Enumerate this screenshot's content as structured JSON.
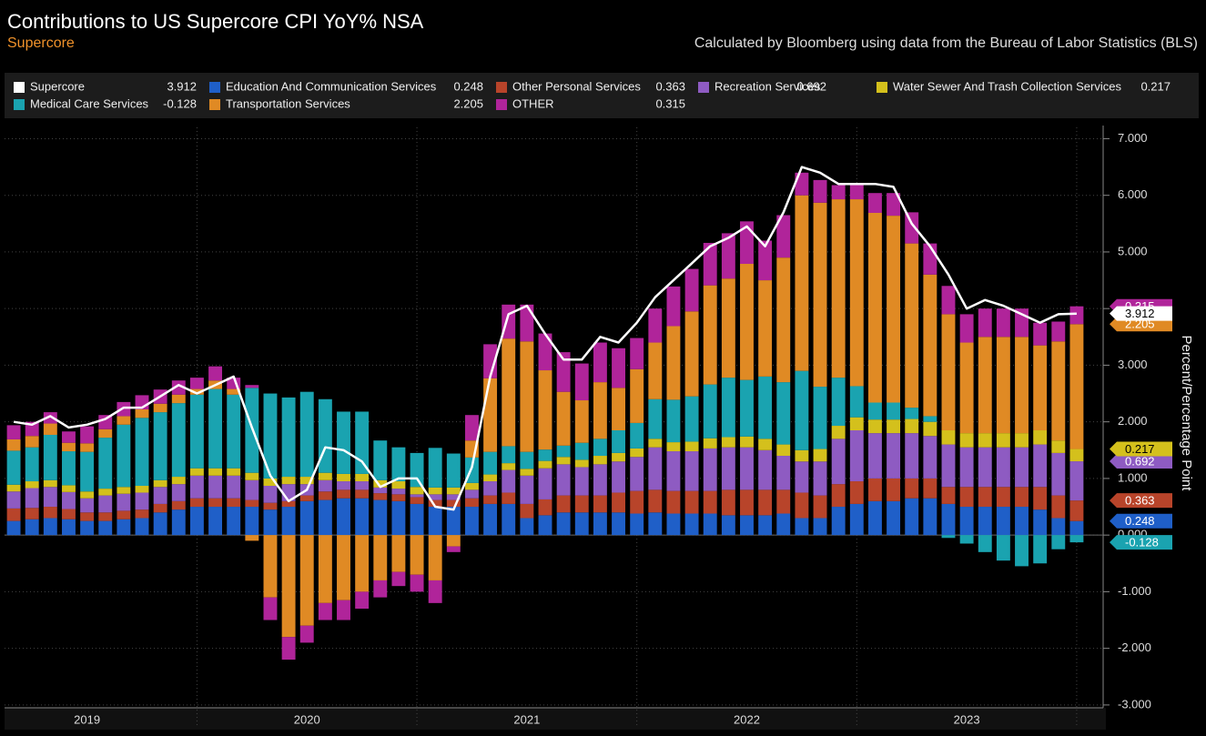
{
  "chart_data": {
    "type": "stacked-bar-line",
    "title": "Contributions to US Supercore CPI YoY% NSA",
    "subtitle": "Supercore",
    "note": "Calculated by Bloomberg using data from the Bureau of Labor Statistics (BLS)",
    "y_label": "Percent/Percentage Point",
    "categories": [
      null,
      null,
      null,
      null,
      "2019",
      null,
      null,
      null,
      null,
      null,
      null,
      null,
      null,
      null,
      null,
      null,
      "2020",
      null,
      null,
      null,
      null,
      null,
      null,
      null,
      null,
      null,
      null,
      null,
      "2021",
      null,
      null,
      null,
      null,
      null,
      null,
      null,
      null,
      null,
      null,
      null,
      "2022",
      null,
      null,
      null,
      null,
      null,
      null,
      null,
      null,
      null,
      null,
      null,
      "2023",
      null,
      null,
      null,
      null,
      null,
      null
    ],
    "ylim": [
      -3.05,
      7.2
    ],
    "yticks": [
      {
        "value": -3,
        "label": "-3.000"
      },
      {
        "value": -2,
        "label": "-2.000"
      },
      {
        "value": -1,
        "label": "-1.000"
      },
      {
        "value": 0,
        "label": "0.000"
      },
      {
        "value": 1,
        "label": "1.000"
      },
      {
        "value": 2,
        "label": "2.000"
      },
      {
        "value": 3,
        "label": "3.000"
      },
      {
        "value": 4,
        "label": "4.000"
      },
      {
        "value": 5,
        "label": "5.000"
      },
      {
        "value": 6,
        "label": "6.000"
      },
      {
        "value": 7,
        "label": "7.000"
      }
    ],
    "grid": true,
    "series": [
      {
        "name": "Supercore",
        "color": "#ffffff",
        "kind": "line",
        "values": [
          2.0,
          1.95,
          2.1,
          1.9,
          1.95,
          2.05,
          2.25,
          2.25,
          2.45,
          2.65,
          2.5,
          2.65,
          2.8,
          1.9,
          1.05,
          0.6,
          0.8,
          1.55,
          1.5,
          1.3,
          0.85,
          1.0,
          1.0,
          0.5,
          0.45,
          1.2,
          2.8,
          3.9,
          4.05,
          3.55,
          3.1,
          3.1,
          3.5,
          3.4,
          3.75,
          4.2,
          4.5,
          4.8,
          5.1,
          5.25,
          5.45,
          5.1,
          5.7,
          6.5,
          6.4,
          6.2,
          6.2,
          6.2,
          6.15,
          5.5,
          5.1,
          4.6,
          4.0,
          4.15,
          4.05,
          3.9,
          3.75,
          3.9,
          3.912
        ]
      },
      {
        "name": "Education And Communication Services",
        "color": "#1f5fc8",
        "kind": "bar",
        "values": [
          0.25,
          0.28,
          0.3,
          0.28,
          0.25,
          0.25,
          0.28,
          0.3,
          0.4,
          0.45,
          0.5,
          0.5,
          0.5,
          0.5,
          0.45,
          0.5,
          0.6,
          0.62,
          0.65,
          0.65,
          0.62,
          0.6,
          0.55,
          0.5,
          0.5,
          0.5,
          0.55,
          0.55,
          0.3,
          0.35,
          0.4,
          0.4,
          0.4,
          0.4,
          0.38,
          0.4,
          0.38,
          0.38,
          0.38,
          0.35,
          0.35,
          0.35,
          0.38,
          0.3,
          0.3,
          0.5,
          0.55,
          0.6,
          0.6,
          0.65,
          0.65,
          0.55,
          0.5,
          0.5,
          0.5,
          0.5,
          0.45,
          0.3,
          0.248
        ]
      },
      {
        "name": "Other Personal Services",
        "color": "#b8442a",
        "kind": "bar",
        "values": [
          0.22,
          0.2,
          0.2,
          0.18,
          0.15,
          0.15,
          0.15,
          0.15,
          0.15,
          0.15,
          0.15,
          0.15,
          0.15,
          0.12,
          0.12,
          0.1,
          0.1,
          0.15,
          0.15,
          0.15,
          0.12,
          0.12,
          0.12,
          0.12,
          0.12,
          0.15,
          0.15,
          0.2,
          0.25,
          0.28,
          0.3,
          0.3,
          0.3,
          0.35,
          0.4,
          0.4,
          0.4,
          0.4,
          0.4,
          0.45,
          0.45,
          0.45,
          0.42,
          0.45,
          0.4,
          0.4,
          0.4,
          0.4,
          0.4,
          0.35,
          0.35,
          0.3,
          0.35,
          0.35,
          0.35,
          0.35,
          0.4,
          0.4,
          0.363
        ]
      },
      {
        "name": "Recreation Services",
        "color": "#8e5bc2",
        "kind": "bar",
        "values": [
          0.3,
          0.35,
          0.35,
          0.3,
          0.25,
          0.3,
          0.3,
          0.3,
          0.3,
          0.3,
          0.4,
          0.4,
          0.4,
          0.35,
          0.3,
          0.3,
          0.2,
          0.2,
          0.15,
          0.15,
          0.1,
          0.1,
          0.05,
          0.1,
          0.1,
          0.15,
          0.25,
          0.4,
          0.5,
          0.55,
          0.55,
          0.5,
          0.55,
          0.55,
          0.6,
          0.75,
          0.7,
          0.7,
          0.75,
          0.75,
          0.75,
          0.7,
          0.6,
          0.55,
          0.6,
          0.8,
          0.9,
          0.8,
          0.8,
          0.8,
          0.75,
          0.75,
          0.7,
          0.7,
          0.7,
          0.7,
          0.75,
          0.75,
          0.692
        ]
      },
      {
        "name": "Water Sewer And Trash Collection Services",
        "color": "#d4c01c",
        "kind": "bar",
        "values": [
          0.12,
          0.12,
          0.12,
          0.12,
          0.12,
          0.12,
          0.12,
          0.12,
          0.12,
          0.13,
          0.13,
          0.13,
          0.13,
          0.13,
          0.13,
          0.13,
          0.13,
          0.13,
          0.13,
          0.13,
          0.13,
          0.13,
          0.13,
          0.12,
          0.12,
          0.12,
          0.12,
          0.12,
          0.12,
          0.13,
          0.13,
          0.13,
          0.15,
          0.15,
          0.15,
          0.15,
          0.16,
          0.17,
          0.18,
          0.18,
          0.19,
          0.2,
          0.2,
          0.2,
          0.22,
          0.23,
          0.23,
          0.24,
          0.24,
          0.25,
          0.25,
          0.25,
          0.25,
          0.25,
          0.25,
          0.25,
          0.25,
          0.22,
          0.217
        ]
      },
      {
        "name": "Medical Care Services",
        "color": "#1aa3b0",
        "kind": "bar",
        "values": [
          0.6,
          0.6,
          0.8,
          0.6,
          0.7,
          0.9,
          1.1,
          1.2,
          1.2,
          1.3,
          1.3,
          1.4,
          1.3,
          1.5,
          1.5,
          1.4,
          1.5,
          1.3,
          1.1,
          1.1,
          0.7,
          0.6,
          0.6,
          0.7,
          0.6,
          0.45,
          0.4,
          0.3,
          0.3,
          0.2,
          0.2,
          0.3,
          0.3,
          0.4,
          0.45,
          0.7,
          0.75,
          0.8,
          0.95,
          1.05,
          1.0,
          1.1,
          1.1,
          1.4,
          1.1,
          0.85,
          0.55,
          0.3,
          0.3,
          0.2,
          0.1,
          -0.05,
          -0.15,
          -0.3,
          -0.45,
          -0.55,
          -0.5,
          -0.25,
          -0.128
        ]
      },
      {
        "name": "Transportation Services",
        "color": "#e08a24",
        "kind": "bar",
        "values": [
          0.2,
          0.2,
          0.2,
          0.15,
          0.15,
          0.15,
          0.15,
          0.15,
          0.15,
          0.15,
          0.1,
          0.15,
          0.1,
          -0.1,
          -1.1,
          -1.8,
          -1.6,
          -1.2,
          -1.15,
          -1.0,
          -0.8,
          -0.65,
          -0.7,
          -0.8,
          -0.2,
          0.3,
          1.3,
          1.9,
          1.95,
          1.4,
          0.95,
          0.75,
          1.0,
          0.75,
          0.95,
          1.0,
          1.3,
          1.5,
          1.75,
          1.75,
          2.05,
          1.7,
          2.2,
          3.1,
          3.25,
          3.15,
          3.3,
          3.35,
          3.3,
          2.9,
          2.5,
          2.05,
          1.6,
          1.7,
          1.7,
          1.7,
          1.5,
          1.75,
          2.205
        ]
      },
      {
        "name": "OTHER",
        "color": "#b0249a",
        "kind": "bar",
        "values": [
          0.25,
          0.25,
          0.2,
          0.2,
          0.3,
          0.25,
          0.25,
          0.25,
          0.25,
          0.25,
          0.2,
          0.25,
          0.2,
          0.05,
          -0.4,
          -0.4,
          -0.3,
          -0.3,
          -0.35,
          -0.3,
          -0.3,
          -0.25,
          -0.3,
          -0.4,
          -0.1,
          0.45,
          0.6,
          0.6,
          0.65,
          0.65,
          0.7,
          0.65,
          0.7,
          0.7,
          0.55,
          0.6,
          0.7,
          0.75,
          0.75,
          0.8,
          0.75,
          0.7,
          0.75,
          0.4,
          0.4,
          0.25,
          0.25,
          0.35,
          0.4,
          0.55,
          0.55,
          0.5,
          0.5,
          0.5,
          0.5,
          0.5,
          0.4,
          0.35,
          0.315
        ]
      }
    ]
  }
}
